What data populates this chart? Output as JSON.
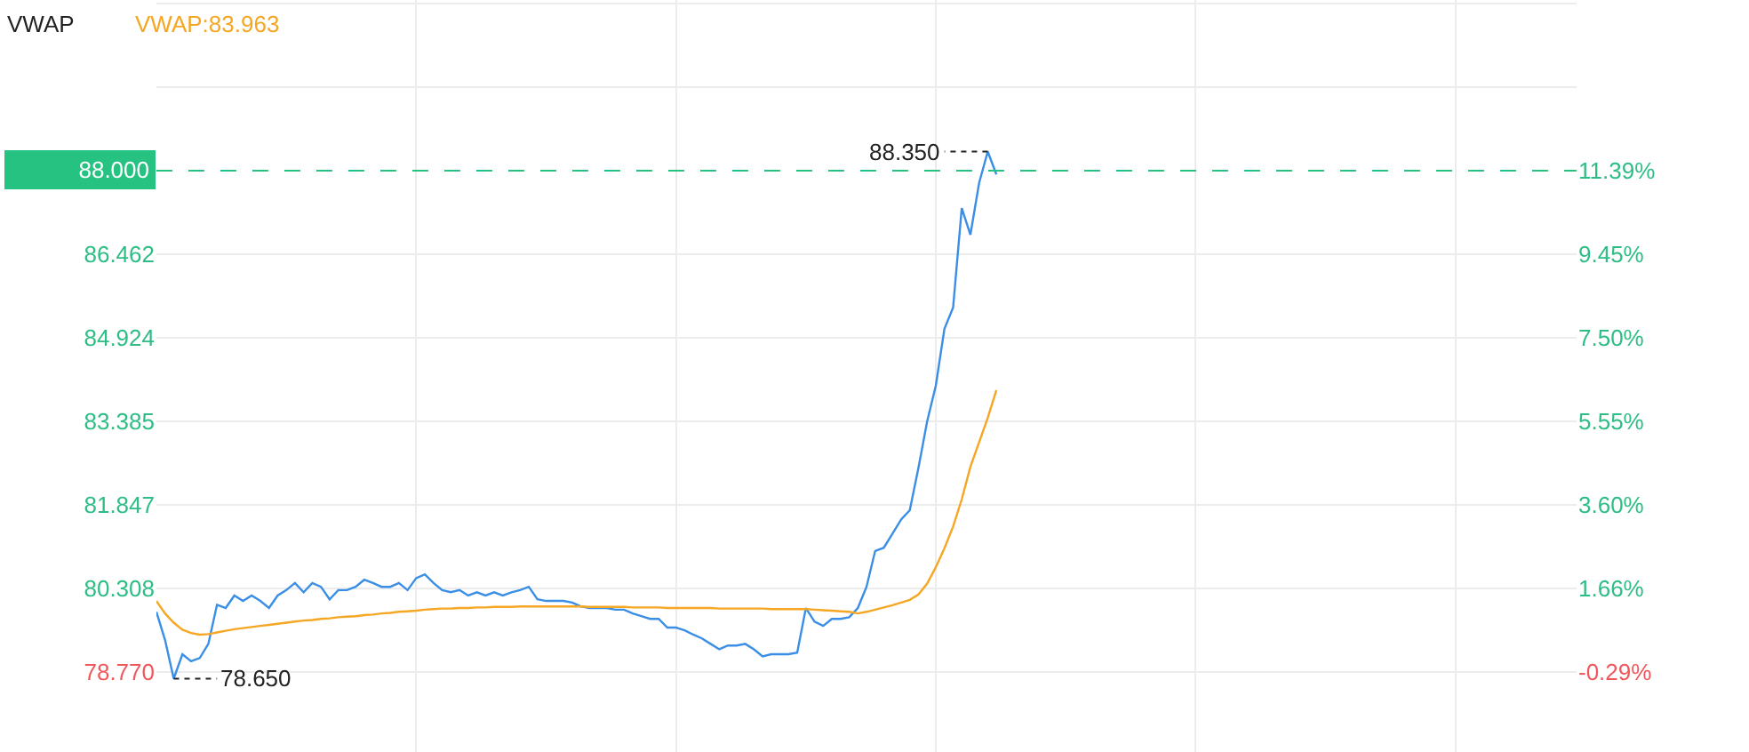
{
  "chart_data": {
    "type": "line",
    "title": "VWAP",
    "annotations": [
      "VWAP:83.963",
      "88.350",
      "78.650"
    ],
    "categories": [
      null,
      null,
      null,
      null,
      null,
      null,
      null,
      null,
      null,
      null,
      null,
      null,
      null,
      null,
      null,
      null,
      null,
      null,
      null,
      null,
      null,
      null,
      null,
      null,
      null,
      null,
      null,
      null,
      null,
      null,
      null,
      null,
      null,
      null,
      null,
      null,
      null,
      null,
      null,
      null,
      null,
      null,
      null,
      null,
      null,
      null,
      null,
      null,
      null,
      null,
      null,
      null,
      null,
      null,
      null,
      null,
      null,
      null,
      null,
      null,
      null,
      null,
      null,
      null,
      null,
      null,
      null,
      null,
      null,
      null,
      null,
      null,
      null,
      null,
      null,
      null,
      null,
      null,
      null,
      null,
      null,
      null,
      null,
      null,
      null,
      null,
      null,
      null,
      null,
      null,
      null,
      null,
      null,
      null,
      null,
      null,
      null,
      null,
      null,
      null,
      null,
      null,
      null,
      null,
      null,
      null,
      null,
      null,
      null,
      null,
      null,
      null,
      null,
      null,
      null,
      null,
      null,
      null,
      null,
      null,
      null,
      null,
      null,
      null,
      null,
      null,
      null,
      null,
      null,
      null,
      null,
      null,
      null,
      null,
      null,
      null,
      null,
      null,
      null,
      null,
      null,
      null,
      null,
      null,
      null,
      null,
      null,
      null,
      null,
      null,
      null,
      null,
      null,
      null,
      null,
      null,
      null,
      null,
      null,
      null,
      null,
      null,
      null,
      null,
      null
    ],
    "series": [
      {
        "color": "#3a8ee6",
        "values": [
          79.88,
          79.36,
          78.65,
          79.1,
          78.97,
          79.03,
          79.29,
          80.01,
          79.95,
          80.18,
          80.08,
          80.18,
          80.08,
          79.95,
          80.18,
          80.28,
          80.41,
          80.24,
          80.41,
          80.34,
          80.11,
          80.28,
          80.28,
          80.34,
          80.47,
          80.41,
          80.34,
          80.34,
          80.41,
          80.28,
          80.5,
          80.57,
          80.41,
          80.28,
          80.24,
          80.28,
          80.18,
          80.24,
          80.18,
          80.24,
          80.18,
          80.24,
          80.28,
          80.34,
          80.11,
          80.08,
          80.08,
          80.08,
          80.05,
          79.98,
          79.95,
          79.95,
          79.95,
          79.92,
          79.92,
          79.85,
          79.8,
          79.75,
          79.75,
          79.59,
          79.59,
          79.54,
          79.46,
          79.39,
          79.29,
          79.19,
          79.26,
          79.26,
          79.29,
          79.19,
          79.06,
          79.1,
          79.1,
          79.1,
          79.13,
          79.95,
          79.7,
          79.62,
          79.75,
          79.75,
          79.78,
          79.95,
          80.34,
          81.0,
          81.06,
          81.32,
          81.58,
          81.75,
          82.53,
          83.38,
          84.04,
          85.09,
          85.48,
          87.31,
          86.82,
          87.77,
          88.35,
          87.93,
          null,
          null,
          null,
          null,
          null,
          null,
          null,
          null,
          null,
          null,
          null,
          null,
          null,
          null,
          null,
          null,
          null,
          null,
          null,
          null,
          null,
          null,
          null,
          null,
          null,
          null,
          null,
          null,
          null,
          null,
          null,
          null,
          null,
          null,
          null,
          null,
          null,
          null,
          null,
          null,
          null,
          null,
          null,
          null,
          null,
          null,
          null,
          null,
          null,
          null,
          null,
          null,
          null,
          null,
          null,
          null,
          null,
          null,
          null,
          null,
          null,
          null,
          null,
          null,
          null,
          null,
          null
        ]
      },
      {
        "color": "#f5a623",
        "values": [
          80.08,
          79.85,
          79.68,
          79.55,
          79.49,
          79.46,
          79.47,
          79.5,
          79.53,
          79.56,
          79.58,
          79.6,
          79.62,
          79.64,
          79.66,
          79.68,
          79.7,
          79.72,
          79.73,
          79.75,
          79.76,
          79.78,
          79.79,
          79.8,
          79.82,
          79.83,
          79.85,
          79.86,
          79.88,
          79.89,
          79.9,
          79.92,
          79.93,
          79.94,
          79.94,
          79.95,
          79.95,
          79.96,
          79.96,
          79.97,
          79.97,
          79.97,
          79.98,
          79.98,
          79.98,
          79.98,
          79.98,
          79.98,
          79.98,
          79.98,
          79.97,
          79.97,
          79.97,
          79.97,
          79.97,
          79.96,
          79.96,
          79.96,
          79.96,
          79.95,
          79.95,
          79.95,
          79.95,
          79.95,
          79.95,
          79.94,
          79.94,
          79.94,
          79.94,
          79.94,
          79.94,
          79.93,
          79.93,
          79.93,
          79.93,
          79.93,
          79.92,
          79.91,
          79.9,
          79.89,
          79.88,
          79.85,
          79.88,
          79.92,
          79.96,
          80.0,
          80.05,
          80.1,
          80.2,
          80.4,
          80.7,
          81.05,
          81.45,
          81.95,
          82.55,
          83.0,
          83.45,
          83.96,
          null,
          null,
          null,
          null,
          null,
          null,
          null,
          null,
          null,
          null,
          null,
          null,
          null,
          null,
          null,
          null,
          null,
          null,
          null,
          null,
          null,
          null,
          null,
          null,
          null,
          null,
          null,
          null,
          null,
          null,
          null,
          null,
          null,
          null,
          null,
          null,
          null,
          null,
          null,
          null,
          null,
          null,
          null,
          null,
          null,
          null,
          null,
          null,
          null,
          null,
          null,
          null,
          null,
          null,
          null,
          null,
          null,
          null,
          null,
          null,
          null,
          null,
          null,
          null,
          null,
          null,
          null
        ]
      }
    ],
    "ylim": [
      77.3,
      91.14
    ],
    "yticks": [
      {
        "value": 78.77,
        "label": "78.770"
      },
      80.308,
      81.847,
      83.385,
      84.924,
      86.462,
      {
        "value": 89.539,
        "label": null
      },
      {
        "value": 91.077,
        "label": null
      }
    ],
    "y2lim": [
      -2.15,
      15.37
    ],
    "y2ticks": [
      {
        "value": -0.29,
        "label": "-0.29%"
      },
      {
        "value": 1.66,
        "label": "1.66%"
      },
      {
        "value": 3.6,
        "label": "3.60%"
      },
      {
        "value": 5.55,
        "label": "5.55%"
      },
      {
        "value": 7.5,
        "label": "7.50%"
      },
      {
        "value": 9.45,
        "label": "9.45%"
      },
      {
        "value": 11.39,
        "label": "11.39%"
      }
    ],
    "ref_lines": [
      {
        "axis": "y",
        "value": 88.0,
        "label": "88.000",
        "color": "#26c281",
        "line_style": "dashed"
      }
    ],
    "grid": true,
    "legend": false,
    "marker": "none",
    "line_style": "solid"
  }
}
